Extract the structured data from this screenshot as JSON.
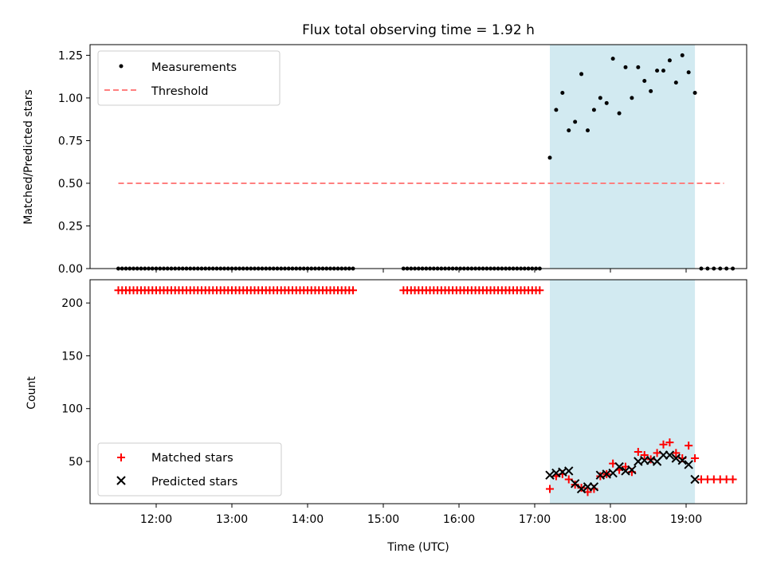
{
  "figure": {
    "title": "Flux total observing time = 1.92 h",
    "xlabel": "Time (UTC)",
    "x_ticks": [
      "12:00",
      "13:00",
      "14:00",
      "15:00",
      "16:00",
      "17:00",
      "18:00",
      "19:00"
    ],
    "shaded_window": {
      "start": "17:12",
      "end": "19:07",
      "color": "#add8e6"
    }
  },
  "chart_data": [
    {
      "type": "scatter",
      "ylabel": "Matched/Predicted stars",
      "ylim": [
        0,
        1.3125
      ],
      "y_ticks": [
        "0.00",
        "0.25",
        "0.50",
        "0.75",
        "1.00",
        "1.25"
      ],
      "legend": {
        "placement": "top-left",
        "entries": [
          "Measurements",
          "Threshold"
        ]
      },
      "series": [
        {
          "name": "Measurements",
          "color": "#000000",
          "marker": "dot",
          "groups": [
            {
              "start": "11:30",
              "step_min": 3,
              "values": [
                0,
                0,
                0,
                0,
                0,
                0,
                0,
                0,
                0,
                0,
                0,
                0,
                0,
                0,
                0,
                0,
                0,
                0,
                0,
                0,
                0,
                0,
                0,
                0,
                0,
                0,
                0,
                0,
                0,
                0,
                0,
                0,
                0,
                0,
                0,
                0,
                0,
                0,
                0,
                0,
                0,
                0,
                0,
                0,
                0,
                0,
                0,
                0,
                0,
                0,
                0,
                0,
                0,
                0,
                0,
                0,
                0,
                0,
                0,
                0,
                0,
                0,
                0
              ]
            },
            {
              "start": "15:16",
              "step_min": 3,
              "values": [
                0,
                0,
                0,
                0,
                0,
                0,
                0,
                0,
                0,
                0,
                0,
                0,
                0,
                0,
                0,
                0,
                0,
                0,
                0,
                0,
                0,
                0,
                0,
                0,
                0,
                0,
                0,
                0,
                0,
                0,
                0,
                0,
                0,
                0,
                0,
                0,
                0
              ]
            },
            {
              "start": "17:12",
              "step_min": 5,
              "values": [
                0.65,
                0.93,
                1.03,
                0.81,
                0.86,
                1.14,
                0.81,
                0.93,
                1.0,
                0.97,
                1.23,
                0.91,
                1.18,
                1.0,
                1.18,
                1.1,
                1.04,
                1.16,
                1.16,
                1.22,
                1.09,
                1.25,
                1.15,
                1.03
              ]
            },
            {
              "start": "19:12",
              "step_min": 5,
              "values": [
                0,
                0,
                0,
                0,
                0,
                0
              ]
            }
          ]
        },
        {
          "name": "Threshold",
          "color": "#ff7f7f",
          "style": "dashed",
          "x": [
            "11:30",
            "19:30"
          ],
          "values": [
            0.5,
            0.5
          ]
        }
      ]
    },
    {
      "type": "scatter",
      "ylabel": "Count",
      "ylim": [
        10,
        222
      ],
      "y_ticks": [
        "50",
        "100",
        "150",
        "200"
      ],
      "legend": {
        "placement": "bottom-left",
        "entries": [
          "Matched stars",
          "Predicted stars"
        ]
      },
      "series": [
        {
          "name": "Matched stars",
          "color": "#ff0000",
          "marker": "plus",
          "groups": [
            {
              "start": "11:30",
              "step_min": 3,
              "values": [
                212,
                212,
                212,
                212,
                212,
                212,
                212,
                212,
                212,
                212,
                212,
                212,
                212,
                212,
                212,
                212,
                212,
                212,
                212,
                212,
                212,
                212,
                212,
                212,
                212,
                212,
                212,
                212,
                212,
                212,
                212,
                212,
                212,
                212,
                212,
                212,
                212,
                212,
                212,
                212,
                212,
                212,
                212,
                212,
                212,
                212,
                212,
                212,
                212,
                212,
                212,
                212,
                212,
                212,
                212,
                212,
                212,
                212,
                212,
                212,
                212,
                212,
                212
              ]
            },
            {
              "start": "15:16",
              "step_min": 3,
              "values": [
                212,
                212,
                212,
                212,
                212,
                212,
                212,
                212,
                212,
                212,
                212,
                212,
                212,
                212,
                212,
                212,
                212,
                212,
                212,
                212,
                212,
                212,
                212,
                212,
                212,
                212,
                212,
                212,
                212,
                212,
                212,
                212,
                212,
                212,
                212,
                212,
                212
              ]
            },
            {
              "start": "17:12",
              "step_min": 5,
              "values": [
                24,
                36,
                38,
                33,
                28,
                25,
                21,
                24,
                36,
                38,
                48,
                42,
                45,
                40,
                59,
                56,
                52,
                58,
                66,
                68,
                58,
                53,
                65,
                53
              ]
            },
            {
              "start": "19:12",
              "step_min": 5,
              "values": [
                33,
                33,
                33,
                33,
                33,
                33
              ]
            }
          ]
        },
        {
          "name": "Predicted stars",
          "color": "#000000",
          "marker": "x",
          "groups": [
            {
              "start": "17:12",
              "step_min": 5,
              "values": [
                37,
                39,
                40,
                41,
                29,
                24,
                26,
                26,
                37,
                38,
                39,
                45,
                41,
                42,
                50,
                51,
                51,
                50,
                56,
                56,
                53,
                51,
                47,
                33
              ]
            }
          ]
        }
      ]
    }
  ]
}
